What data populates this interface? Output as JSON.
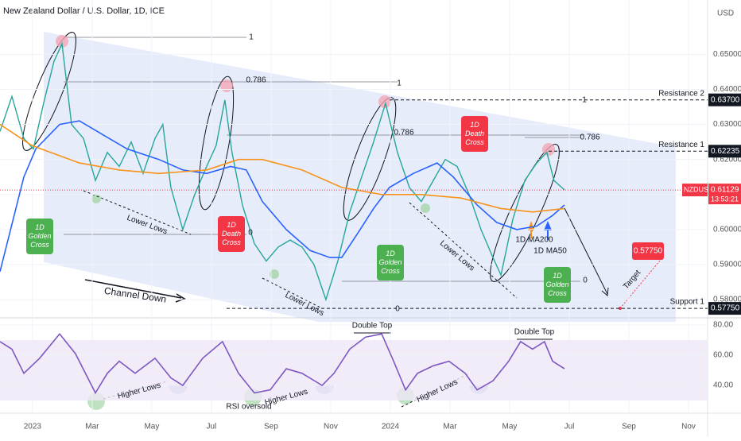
{
  "chart_data": [
    {
      "type": "line",
      "title": "New Zealand Dollar / U.S. Dollar, 1D, ICE",
      "currency": "USD",
      "xlim": [
        -1.09,
        22.64
      ],
      "xticks": [
        {
          "value": 0,
          "label": "2023"
        },
        {
          "value": 2,
          "label": "Mar"
        },
        {
          "value": 4,
          "label": "May"
        },
        {
          "value": 6,
          "label": "Jul"
        },
        {
          "value": 8,
          "label": "Sep"
        },
        {
          "value": 10,
          "label": "Nov"
        },
        {
          "value": 12,
          "label": "2024"
        },
        {
          "value": 14,
          "label": "Mar"
        },
        {
          "value": 16,
          "label": "May"
        },
        {
          "value": 18,
          "label": "Jul"
        },
        {
          "value": 20,
          "label": "Sep"
        },
        {
          "value": 22,
          "label": "Nov"
        }
      ],
      "ylim": [
        0.5748,
        0.6655
      ],
      "yticks": [
        {
          "value": 0.65,
          "label": "0.65000"
        },
        {
          "value": 0.64,
          "label": "0.64000"
        },
        {
          "value": 0.63,
          "label": "0.63000"
        },
        {
          "value": 0.62,
          "label": "0.62000"
        },
        {
          "value": 0.61,
          "label": "0.61000"
        },
        {
          "value": 0.6,
          "label": "0.60000"
        },
        {
          "value": 0.59,
          "label": "0.59000"
        },
        {
          "value": 0.58,
          "label": "0.58000"
        }
      ],
      "grid": true,
      "series": [
        {
          "name": "NZDUSD",
          "color": "#26a69a",
          "x": [
            -1.09,
            -0.69,
            -0.29,
            0.03,
            0.37,
            0.72,
            0.99,
            1.31,
            1.71,
            2.11,
            2.51,
            2.91,
            3.31,
            3.71,
            4.11,
            4.37,
            4.64,
            5.04,
            5.44,
            5.84,
            6.16,
            6.45,
            6.69,
            7.04,
            7.44,
            7.84,
            8.24,
            8.64,
            9.04,
            9.44,
            9.84,
            10.24,
            10.64,
            11.04,
            11.44,
            11.84,
            12.24,
            12.64,
            13.04,
            13.44,
            13.84,
            14.24,
            14.64,
            15.04,
            15.44,
            15.71,
            16.11,
            16.51,
            16.91,
            17.25,
            17.49,
            17.84
          ],
          "values": [
            0.628,
            0.638,
            0.626,
            0.623,
            0.636,
            0.648,
            0.653,
            0.63,
            0.626,
            0.614,
            0.622,
            0.618,
            0.625,
            0.616,
            0.626,
            0.63,
            0.612,
            0.6,
            0.61,
            0.618,
            0.624,
            0.637,
            0.622,
            0.607,
            0.596,
            0.591,
            0.595,
            0.597,
            0.595,
            0.59,
            0.58,
            0.591,
            0.605,
            0.615,
            0.625,
            0.636,
            0.622,
            0.612,
            0.608,
            0.614,
            0.62,
            0.618,
            0.61,
            0.6,
            0.592,
            0.587,
            0.603,
            0.614,
            0.619,
            0.622,
            0.614,
            0.6113
          ]
        },
        {
          "name": "1D MA50",
          "color": "#2962ff",
          "x": [
            -1.09,
            -0.29,
            0.11,
            0.91,
            1.57,
            2.37,
            3.17,
            4.24,
            5.04,
            5.84,
            6.64,
            7.17,
            7.71,
            8.51,
            9.31,
            9.97,
            10.37,
            10.91,
            11.44,
            11.97,
            12.77,
            13.57,
            14.11,
            14.91,
            15.57,
            16.24,
            16.91,
            17.44,
            17.84
          ],
          "values": [
            0.588,
            0.615,
            0.623,
            0.63,
            0.631,
            0.627,
            0.623,
            0.62,
            0.617,
            0.616,
            0.618,
            0.617,
            0.608,
            0.6,
            0.594,
            0.592,
            0.592,
            0.599,
            0.606,
            0.612,
            0.616,
            0.619,
            0.615,
            0.607,
            0.602,
            0.6,
            0.601,
            0.604,
            0.607
          ]
        },
        {
          "name": "1D MA200",
          "color": "#f7931a",
          "x": [
            -1.09,
            -0.03,
            1.57,
            2.91,
            4.24,
            5.84,
            6.91,
            7.71,
            9.04,
            10.37,
            11.71,
            13.04,
            14.37,
            15.71,
            16.77,
            17.84
          ],
          "values": [
            0.63,
            0.624,
            0.619,
            0.617,
            0.616,
            0.617,
            0.62,
            0.62,
            0.617,
            0.612,
            0.61,
            0.61,
            0.609,
            0.606,
            0.605,
            0.606
          ]
        }
      ],
      "last": {
        "value": 0.61129,
        "value_label": "0.61129",
        "timer": "13:53:21"
      },
      "levels": {
        "names": [
          "Resistance 2",
          "Resistance 1",
          "Support 1"
        ],
        "values": [
          0.637,
          0.62235,
          0.5775
        ],
        "value_labels": [
          "0.63700",
          "0.62235",
          "0.57750"
        ]
      },
      "annotations": {
        "channel": "Channel Down",
        "lower_lows": "Lower Lows",
        "higher_lows": "Higher Lows",
        "rsi_oversold": "RSI oversold",
        "double_top": "Double Top",
        "golden_cross": "1D Golden Cross",
        "death_cross": "1D Death Cross",
        "target": "Target",
        "fib": [
          "1",
          "0.786",
          "0"
        ]
      }
    },
    {
      "type": "line",
      "ylim": [
        21.6,
        84.7
      ],
      "yticks": [
        {
          "value": 80,
          "label": "80.00"
        },
        {
          "value": 60,
          "label": "60.00"
        },
        {
          "value": 40,
          "label": "40.00"
        }
      ],
      "band": [
        30,
        70
      ],
      "series": [
        {
          "color": "#7e57c2",
          "x": [
            -1.09,
            -0.69,
            -0.29,
            0.24,
            0.91,
            1.44,
            2.11,
            2.51,
            2.91,
            3.44,
            4.11,
            4.64,
            5.04,
            5.71,
            6.37,
            6.91,
            7.44,
            7.97,
            8.51,
            9.04,
            9.71,
            10.11,
            10.64,
            11.17,
            11.71,
            12.11,
            12.51,
            12.91,
            13.44,
            13.97,
            14.51,
            14.91,
            15.44,
            15.97,
            16.37,
            16.77,
            17.17,
            17.44,
            17.84
          ],
          "values": [
            69,
            64,
            48,
            58,
            74,
            61,
            35,
            48,
            56,
            48,
            58,
            45,
            40,
            58,
            69,
            48,
            35,
            37,
            51,
            48,
            40,
            48,
            64,
            72,
            74,
            56,
            37,
            48,
            53,
            56,
            48,
            37,
            43,
            56,
            69,
            64,
            69,
            56,
            51
          ]
        }
      ]
    }
  ]
}
